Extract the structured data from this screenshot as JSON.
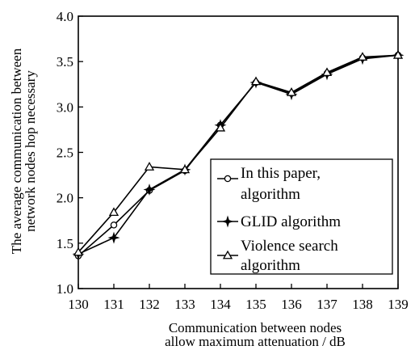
{
  "chart_data": {
    "type": "line",
    "x": [
      130,
      131,
      132,
      133,
      134,
      135,
      136,
      137,
      138,
      139
    ],
    "xlabel": [
      "Communication between nodes",
      "allow maximum attenuation / dB"
    ],
    "ylabel": [
      "The average communication between",
      "network nodes hop necessary"
    ],
    "xlim": [
      130,
      139
    ],
    "ylim": [
      1.0,
      4.0
    ],
    "yticks": [
      "1.0",
      "1.5",
      "2.0",
      "2.5",
      "3.0",
      "3.5",
      "4.0"
    ],
    "xticks": [
      "130",
      "131",
      "132",
      "133",
      "134",
      "135",
      "136",
      "137",
      "138",
      "139"
    ],
    "grid": false,
    "legend_position": "bottom-right",
    "series": [
      {
        "name": [
          "In this paper,",
          "algorithm"
        ],
        "marker": "circle",
        "values": [
          1.36,
          1.7,
          2.08,
          2.3,
          2.8,
          3.27,
          3.15,
          3.37,
          3.54,
          3.57
        ]
      },
      {
        "name": [
          "GLID algorithm"
        ],
        "marker": "star",
        "values": [
          1.38,
          1.56,
          2.09,
          2.31,
          2.8,
          3.27,
          3.14,
          3.36,
          3.53,
          3.57
        ]
      },
      {
        "name": [
          "Violence search",
          "algorithm"
        ],
        "marker": "triangle",
        "values": [
          1.4,
          1.84,
          2.34,
          2.31,
          2.77,
          3.28,
          3.16,
          3.38,
          3.55,
          3.57
        ]
      }
    ]
  }
}
